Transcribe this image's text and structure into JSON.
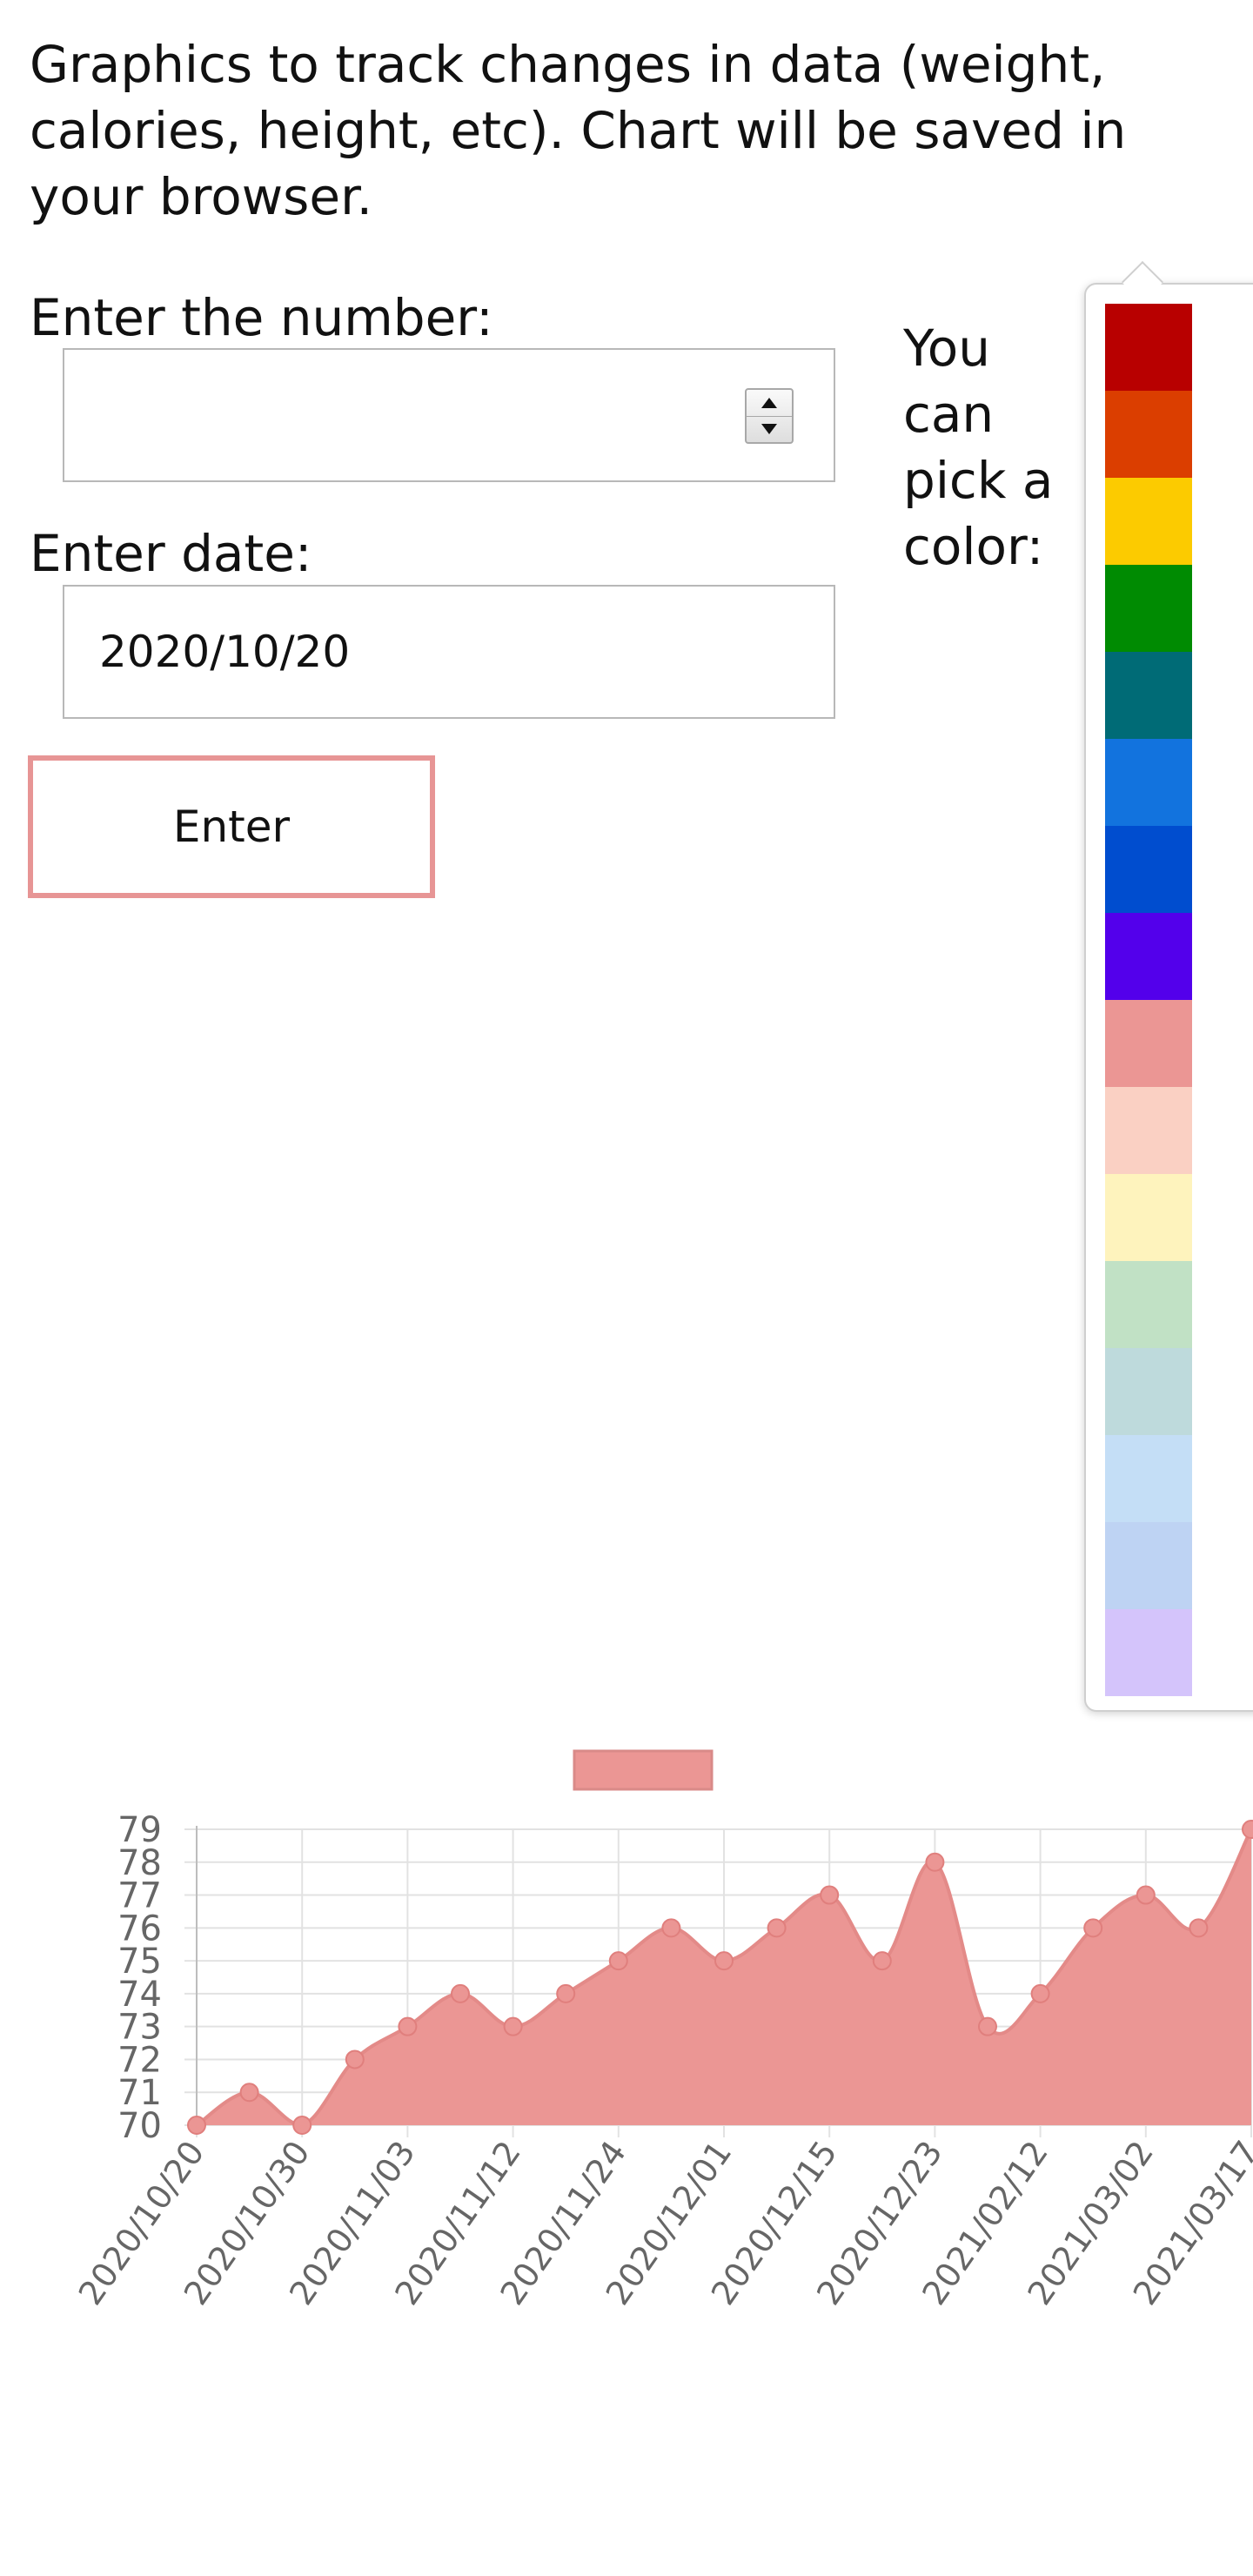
{
  "intro_text": "Graphics to track changes in data (weight, calories, height, etc). Chart will be saved in your browser.",
  "form": {
    "number_label": "Enter the number:",
    "number_value": "",
    "date_label": "Enter date:",
    "date_value": "2020/10/20",
    "enter_button": "Enter"
  },
  "color_picker": {
    "label": "You can pick a color:",
    "swatches": [
      "#b80000",
      "#db3e00",
      "#fccb00",
      "#008b02",
      "#006b76",
      "#1273de",
      "#004dcf",
      "#5300eb",
      "#eb9694",
      "#fad0c3",
      "#fef3bd",
      "#c1e1c5",
      "#bedadc",
      "#c4def6",
      "#bed3f3",
      "#d4c4fb"
    ]
  },
  "chart_data": {
    "type": "area",
    "title": "",
    "xlabel": "",
    "ylabel": "",
    "color": "#eb9694",
    "legend_position": "top",
    "grid": true,
    "ylim": [
      70,
      79
    ],
    "y_ticks": [
      "70",
      "71",
      "72",
      "73",
      "74",
      "75",
      "76",
      "77",
      "78",
      "79"
    ],
    "x_tick_labels": [
      "2020/10/20",
      "2020/10/30",
      "2020/11/03",
      "2020/11/12",
      "2020/11/24",
      "2020/12/01",
      "2020/12/15",
      "2020/12/23",
      "2021/02/12",
      "2021/03/02",
      "2021/03/17"
    ],
    "series": [
      {
        "values": [
          70,
          71,
          70,
          72,
          73,
          74,
          73,
          74,
          75,
          76,
          75,
          76,
          77,
          75,
          78,
          73,
          74,
          76,
          77,
          76,
          79
        ]
      }
    ]
  }
}
